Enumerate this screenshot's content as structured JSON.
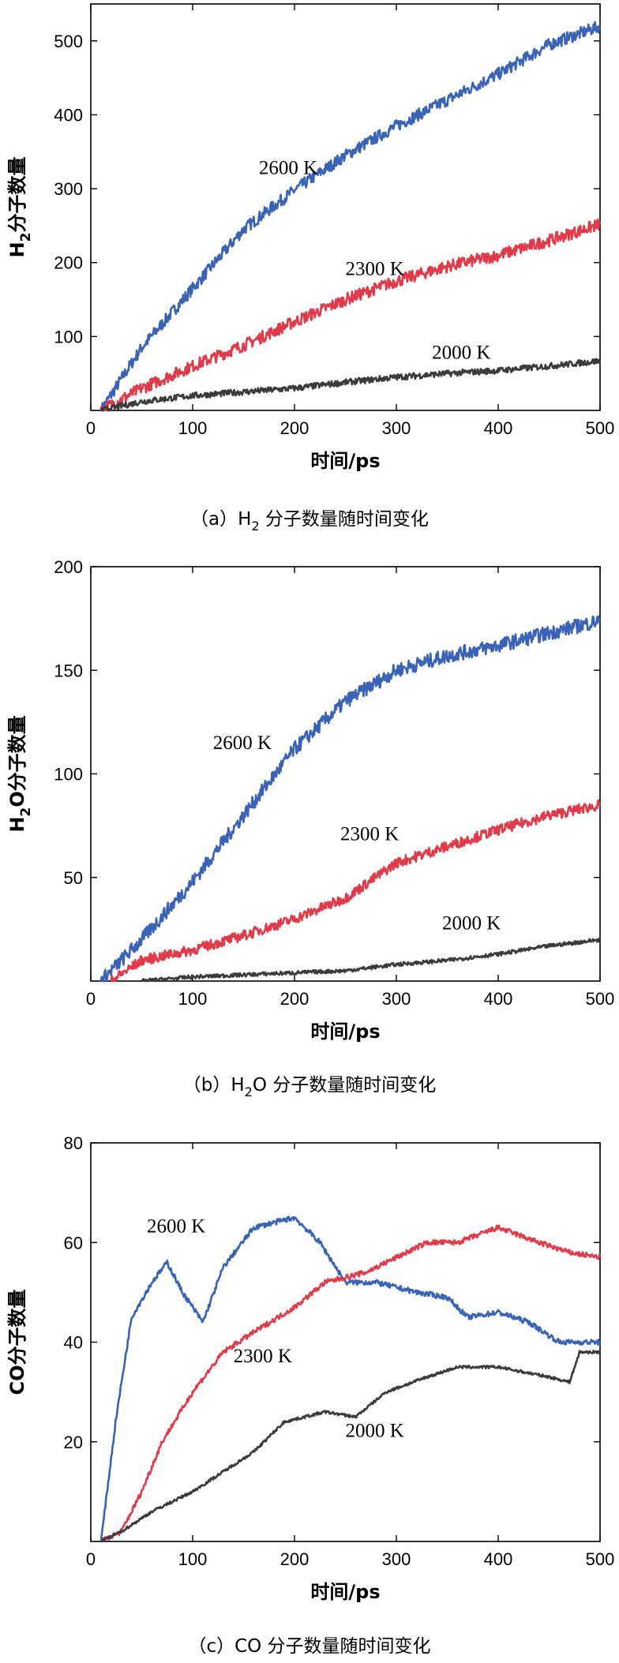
{
  "colors": {
    "2600 K": "#3a63b7",
    "2300 K": "#e13a4b",
    "2000 K": "#3c3a3d"
  },
  "chart_data": [
    {
      "type": "line",
      "xlabel": "时间/ps",
      "ylabel_main": "H",
      "ylabel_sub": "2",
      "ylabel_rest": "分子数量",
      "xlim": [
        0,
        500
      ],
      "ylim": [
        0,
        550
      ],
      "xticks": [
        0,
        100,
        200,
        300,
        400,
        500
      ],
      "yticks": [
        100,
        200,
        300,
        400,
        500
      ],
      "caption_pre": "（a）H",
      "caption_sub": "2",
      "caption_post": " 分子数量随时间变化",
      "series": [
        {
          "name": "2600 K",
          "label_at": [
            165,
            320
          ],
          "points": [
            [
              10,
              0
            ],
            [
              50,
              85
            ],
            [
              100,
              165
            ],
            [
              150,
              245
            ],
            [
              200,
              298
            ],
            [
              250,
              345
            ],
            [
              300,
              385
            ],
            [
              350,
              420
            ],
            [
              400,
              455
            ],
            [
              450,
              495
            ],
            [
              500,
              520
            ]
          ]
        },
        {
          "name": "2300 K",
          "label_at": [
            250,
            183
          ],
          "points": [
            [
              10,
              0
            ],
            [
              50,
              30
            ],
            [
              100,
              60
            ],
            [
              150,
              88
            ],
            [
              200,
              120
            ],
            [
              250,
              150
            ],
            [
              300,
              175
            ],
            [
              350,
              195
            ],
            [
              400,
              210
            ],
            [
              450,
              230
            ],
            [
              500,
              252
            ]
          ]
        },
        {
          "name": "2000 K",
          "label_at": [
            335,
            70
          ],
          "points": [
            [
              10,
              0
            ],
            [
              50,
              12
            ],
            [
              100,
              20
            ],
            [
              150,
              25
            ],
            [
              200,
              30
            ],
            [
              250,
              38
            ],
            [
              300,
              45
            ],
            [
              350,
              50
            ],
            [
              400,
              54
            ],
            [
              450,
              60
            ],
            [
              500,
              67
            ]
          ]
        }
      ]
    },
    {
      "type": "line",
      "xlabel": "时间/ps",
      "ylabel_main": "H",
      "ylabel_sub": "2",
      "ylabel_rest": "O分子数量",
      "xlim": [
        0,
        500
      ],
      "ylim": [
        0,
        200
      ],
      "xticks": [
        0,
        100,
        200,
        300,
        400,
        500
      ],
      "yticks": [
        50,
        100,
        150,
        200
      ],
      "caption_pre": "（b）H",
      "caption_sub": "2",
      "caption_post": "O 分子数量随时间变化",
      "series": [
        {
          "name": "2600 K",
          "label_at": [
            120,
            112
          ],
          "points": [
            [
              10,
              0
            ],
            [
              50,
              20
            ],
            [
              100,
              48
            ],
            [
              150,
              80
            ],
            [
              200,
              112
            ],
            [
              250,
              135
            ],
            [
              300,
              150
            ],
            [
              350,
              157
            ],
            [
              400,
              162
            ],
            [
              450,
              168
            ],
            [
              500,
              174
            ]
          ]
        },
        {
          "name": "2300 K",
          "label_at": [
            245,
            68
          ],
          "points": [
            [
              20,
              0
            ],
            [
              50,
              10
            ],
            [
              100,
              15
            ],
            [
              150,
              22
            ],
            [
              200,
              30
            ],
            [
              250,
              40
            ],
            [
              300,
              57
            ],
            [
              350,
              65
            ],
            [
              400,
              73
            ],
            [
              450,
              80
            ],
            [
              500,
              85
            ]
          ]
        },
        {
          "name": "2000 K",
          "label_at": [
            345,
            25
          ],
          "points": [
            [
              50,
              0
            ],
            [
              100,
              2
            ],
            [
              150,
              3
            ],
            [
              200,
              4
            ],
            [
              250,
              5
            ],
            [
              300,
              8
            ],
            [
              350,
              10
            ],
            [
              400,
              13
            ],
            [
              450,
              17
            ],
            [
              500,
              20
            ]
          ]
        }
      ]
    },
    {
      "type": "line",
      "xlabel": "时间/ps",
      "ylabel_main": "CO",
      "ylabel_sub": "",
      "ylabel_rest": "分子数量",
      "xlim": [
        0,
        500
      ],
      "ylim": [
        0,
        80
      ],
      "xticks": [
        0,
        100,
        200,
        300,
        400,
        500
      ],
      "yticks": [
        20,
        40,
        60,
        80
      ],
      "caption_pre": "（c）CO 分子数量随时间变化",
      "caption_sub": "",
      "caption_post": "",
      "series": [
        {
          "name": "2600 K",
          "label_at": [
            55,
            62
          ],
          "points": [
            [
              10,
              0
            ],
            [
              25,
              25
            ],
            [
              40,
              45
            ],
            [
              60,
              52
            ],
            [
              75,
              56
            ],
            [
              90,
              50
            ],
            [
              110,
              44
            ],
            [
              130,
              55
            ],
            [
              160,
              63
            ],
            [
              200,
              65
            ],
            [
              225,
              60
            ],
            [
              250,
              52
            ],
            [
              280,
              52
            ],
            [
              320,
              50
            ],
            [
              350,
              49
            ],
            [
              370,
              45
            ],
            [
              400,
              46
            ],
            [
              430,
              44
            ],
            [
              460,
              40
            ],
            [
              500,
              40
            ]
          ]
        },
        {
          "name": "2300 K",
          "label_at": [
            140,
            36
          ],
          "points": [
            [
              10,
              0
            ],
            [
              30,
              2
            ],
            [
              50,
              10
            ],
            [
              70,
              20
            ],
            [
              100,
              30
            ],
            [
              130,
              38
            ],
            [
              160,
              42
            ],
            [
              200,
              47
            ],
            [
              230,
              52
            ],
            [
              270,
              54
            ],
            [
              300,
              57
            ],
            [
              330,
              60
            ],
            [
              360,
              60
            ],
            [
              400,
              63
            ],
            [
              440,
              60
            ],
            [
              470,
              58
            ],
            [
              500,
              57
            ]
          ]
        },
        {
          "name": "2000 K",
          "label_at": [
            250,
            21
          ],
          "points": [
            [
              10,
              0
            ],
            [
              30,
              2
            ],
            [
              60,
              6
            ],
            [
              100,
              10
            ],
            [
              130,
              14
            ],
            [
              160,
              18
            ],
            [
              190,
              24
            ],
            [
              230,
              26
            ],
            [
              260,
              25
            ],
            [
              290,
              30
            ],
            [
              330,
              33
            ],
            [
              360,
              35
            ],
            [
              400,
              35
            ],
            [
              450,
              33
            ],
            [
              470,
              32
            ],
            [
              480,
              38
            ],
            [
              500,
              38
            ]
          ]
        }
      ]
    }
  ]
}
